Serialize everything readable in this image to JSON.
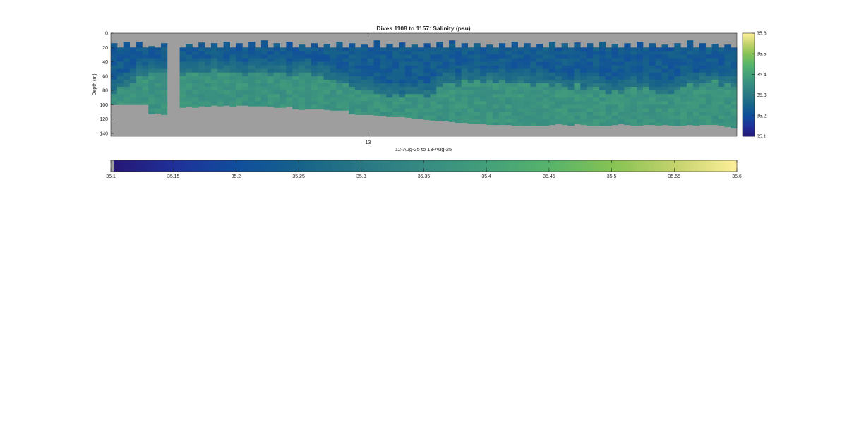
{
  "chart_data": {
    "type": "heatmap",
    "title": "Dives 1108 to 1157: Salinity (psu)",
    "ylabel": "Depth (m)",
    "xlabel": "12-Aug-25 to 13-Aug-25",
    "x_ticks": [
      "13"
    ],
    "y_ticks": [
      0,
      20,
      40,
      60,
      80,
      100,
      120,
      140
    ],
    "ylim": [
      0,
      144
    ],
    "y_reversed": true,
    "colorbar_right_ticks": [
      35.1,
      35.2,
      35.3,
      35.4,
      35.5,
      35.6
    ],
    "colorbar_bottom_ticks": [
      35.1,
      35.15,
      35.2,
      35.25,
      35.3,
      35.35,
      35.4,
      35.45,
      35.5,
      35.55,
      35.6
    ],
    "color_limits": [
      35.1,
      35.6
    ],
    "colormap": "haline",
    "nodata_color": "#9e9e9e",
    "profile_count": 100,
    "depth_bin_m": 5,
    "profile_top_depth_m": [
      14,
      20,
      12,
      20,
      12,
      20,
      18,
      20,
      14,
      20,
      14,
      20,
      15,
      20,
      13,
      20,
      14,
      20,
      12,
      20,
      14,
      20,
      12,
      20,
      10,
      20,
      14,
      20,
      12,
      20,
      16,
      20,
      14,
      20,
      15,
      20,
      12,
      20,
      14,
      20,
      16,
      20,
      10,
      20,
      15,
      20,
      13,
      20,
      16,
      20,
      14,
      20,
      12,
      20,
      10,
      20,
      14,
      20,
      14,
      20,
      16,
      20,
      14,
      20,
      12,
      20,
      14,
      20,
      15,
      20,
      12,
      20,
      14,
      20,
      13,
      20,
      14,
      20,
      12,
      20,
      15,
      20,
      14,
      20,
      12,
      20,
      14,
      20,
      16,
      20,
      14,
      20,
      10,
      20,
      14,
      20,
      15,
      20,
      16,
      20
    ],
    "profile_bottom_depth_m": [
      100,
      100,
      100,
      100,
      100,
      100,
      113,
      112,
      114,
      0,
      0,
      104,
      103,
      104,
      102,
      103,
      101,
      102,
      101,
      103,
      101,
      101,
      102,
      102,
      102,
      103,
      104,
      104,
      103,
      106,
      107,
      106,
      106,
      106,
      107,
      108,
      108,
      108,
      113,
      114,
      114,
      114,
      115,
      115,
      117,
      117,
      117,
      118,
      119,
      119,
      121,
      122,
      122,
      123,
      124,
      125,
      125,
      126,
      126,
      127,
      128,
      128,
      128,
      128,
      129,
      129,
      129,
      129,
      129,
      129,
      128,
      127,
      128,
      129,
      127,
      128,
      129,
      129,
      129,
      129,
      128,
      127,
      128,
      129,
      129,
      128,
      128,
      129,
      128,
      129,
      129,
      129,
      128,
      129,
      128,
      128,
      128,
      129,
      131,
      133
    ],
    "profile_halocline_depth_m": [
      78,
      70,
      66,
      62,
      55,
      52,
      50,
      50,
      50,
      0,
      0,
      52,
      50,
      48,
      46,
      47,
      45,
      48,
      50,
      47,
      49,
      52,
      48,
      50,
      48,
      52,
      50,
      48,
      55,
      52,
      50,
      48,
      55,
      52,
      58,
      60,
      62,
      65,
      70,
      72,
      75,
      72,
      78,
      80,
      82,
      80,
      85,
      78,
      80,
      78,
      82,
      80,
      70,
      62,
      65,
      68,
      60,
      62,
      58,
      65,
      60,
      62,
      60,
      63,
      62,
      63,
      65,
      68,
      63,
      65,
      68,
      65,
      70,
      75,
      65,
      72,
      70,
      68,
      72,
      80,
      75,
      78,
      70,
      68,
      72,
      70,
      75,
      78,
      76,
      78,
      72,
      68,
      65,
      70,
      63,
      65,
      60,
      68,
      65,
      68
    ],
    "surface_salinity_psu": 35.23,
    "halocline_salinity_psu": 35.29,
    "deep_salinity_psu": 35.37
  }
}
